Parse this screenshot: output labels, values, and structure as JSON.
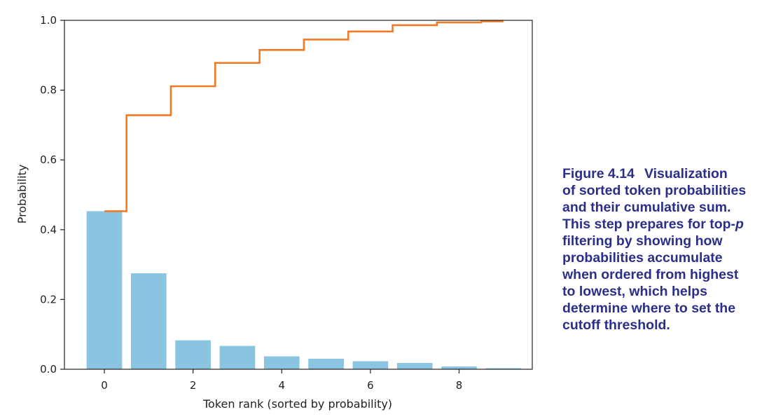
{
  "chart_data": {
    "type": "bar",
    "x": [
      0,
      1,
      2,
      3,
      4,
      5,
      6,
      7,
      8,
      9
    ],
    "series": [
      {
        "type": "bar",
        "values": [
          0.453,
          0.275,
          0.083,
          0.067,
          0.037,
          0.03,
          0.023,
          0.018,
          0.008,
          0.003
        ]
      },
      {
        "type": "step",
        "values": [
          0.453,
          0.728,
          0.811,
          0.878,
          0.915,
          0.945,
          0.968,
          0.986,
          0.994,
          0.997
        ]
      }
    ],
    "xticks": [
      "0",
      "2",
      "4",
      "6",
      "8"
    ],
    "yticks": [
      "0.0",
      "0.2",
      "0.4",
      "0.6",
      "0.8",
      "1.0"
    ],
    "xlabel": "Token rank (sorted by probability)",
    "ylabel": "Probability",
    "xlim": [
      -0.9,
      9.65
    ],
    "ylim": [
      0,
      1.0
    ],
    "grid": false,
    "colors": {
      "bar": "#89c5e0",
      "step": "#f07a24"
    }
  },
  "caption": {
    "number": "Figure 4.14",
    "lines": [
      "Visualization",
      "of sorted token probabilities",
      "and their cumulative sum.",
      "This step prepares for top-",
      "filtering by showing how",
      "probabilities accumulate",
      "when ordered from highest",
      "to lowest, which helps",
      "determine where to set the",
      "cutoff threshold."
    ],
    "italic_p": "p"
  }
}
